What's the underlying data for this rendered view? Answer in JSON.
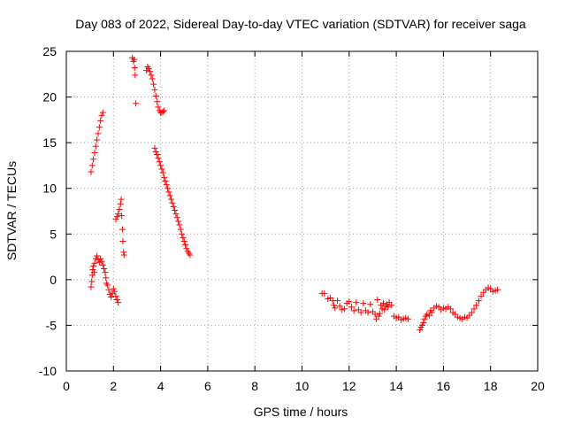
{
  "chart_data": {
    "type": "scatter",
    "title": "Day 083 of 2022, Sidereal Day-to-day VTEC variation (SDTVAR) for receiver saga",
    "xlabel": "GPS time / hours",
    "ylabel": "SDTVAR / TECUs",
    "xlim": [
      0,
      20
    ],
    "ylim": [
      -10,
      25
    ],
    "xticks": [
      0,
      2,
      4,
      6,
      8,
      10,
      12,
      14,
      16,
      18,
      20
    ],
    "yticks": [
      -10,
      -5,
      0,
      5,
      10,
      15,
      20,
      25
    ],
    "grid": true,
    "marker": "+",
    "series": [
      {
        "name": "SDTVAR",
        "color": "#ff0000",
        "segments": [
          [
            [
              1.05,
              11.8
            ],
            [
              1.1,
              12.5
            ],
            [
              1.15,
              13.2
            ],
            [
              1.2,
              13.9
            ],
            [
              1.25,
              14.6
            ],
            [
              1.3,
              15.3
            ],
            [
              1.35,
              16.0
            ],
            [
              1.4,
              16.7
            ],
            [
              1.45,
              17.4
            ],
            [
              1.5,
              18.0
            ],
            [
              1.55,
              18.3
            ]
          ],
          [
            [
              1.05,
              -0.8
            ],
            [
              1.08,
              -0.2
            ],
            [
              1.1,
              0.5
            ],
            [
              1.12,
              1.1
            ],
            [
              1.15,
              1.5
            ],
            [
              1.18,
              0.8
            ],
            [
              1.2,
              1.8
            ],
            [
              1.25,
              2.3
            ],
            [
              1.3,
              2.6
            ],
            [
              1.35,
              2.2
            ],
            [
              1.4,
              1.9
            ],
            [
              1.45,
              2.3
            ],
            [
              1.5,
              2.0
            ],
            [
              1.55,
              1.6
            ],
            [
              1.6,
              1.2
            ],
            [
              1.65,
              0.8
            ],
            [
              1.68,
              0.2
            ],
            [
              1.7,
              -0.4
            ],
            [
              1.75,
              -0.6
            ],
            [
              1.8,
              -1.1
            ],
            [
              1.85,
              -1.6
            ],
            [
              1.9,
              -1.9
            ],
            [
              1.95,
              -1.5
            ],
            [
              2.0,
              -1.0
            ],
            [
              2.05,
              -1.3
            ],
            [
              2.1,
              -1.8
            ],
            [
              2.15,
              -2.2
            ],
            [
              2.2,
              -2.5
            ]
          ],
          [
            [
              2.1,
              6.6
            ],
            [
              2.15,
              6.9
            ],
            [
              2.2,
              7.2
            ],
            [
              2.25,
              7.7
            ],
            [
              2.3,
              8.3
            ],
            [
              2.33,
              8.8
            ],
            [
              2.35,
              7.0
            ],
            [
              2.38,
              5.5
            ],
            [
              2.4,
              4.2
            ],
            [
              2.43,
              3.0
            ],
            [
              2.45,
              2.7
            ]
          ],
          [
            [
              2.8,
              24.3
            ],
            [
              2.85,
              23.9
            ],
            [
              2.88,
              24.1
            ],
            [
              2.9,
              23.2
            ],
            [
              2.92,
              22.4
            ],
            [
              2.95,
              19.3
            ]
          ],
          [
            [
              3.4,
              22.9
            ],
            [
              3.45,
              23.3
            ],
            [
              3.5,
              23.1
            ],
            [
              3.55,
              22.8
            ],
            [
              3.6,
              22.4
            ],
            [
              3.65,
              22.0
            ],
            [
              3.7,
              21.4
            ],
            [
              3.75,
              20.8
            ],
            [
              3.8,
              20.1
            ],
            [
              3.85,
              19.5
            ],
            [
              3.9,
              18.9
            ],
            [
              3.95,
              18.5
            ],
            [
              4.0,
              18.3
            ],
            [
              4.05,
              18.3
            ],
            [
              4.1,
              18.4
            ],
            [
              4.15,
              18.5
            ]
          ],
          [
            [
              3.75,
              14.4
            ],
            [
              3.8,
              14.0
            ],
            [
              3.85,
              13.7
            ],
            [
              3.9,
              13.3
            ],
            [
              3.95,
              12.9
            ],
            [
              4.0,
              12.5
            ],
            [
              4.05,
              12.1
            ],
            [
              4.1,
              11.7
            ],
            [
              4.15,
              11.2
            ],
            [
              4.2,
              10.8
            ],
            [
              4.25,
              10.4
            ],
            [
              4.3,
              10.0
            ],
            [
              4.35,
              9.6
            ],
            [
              4.4,
              9.2
            ],
            [
              4.45,
              8.8
            ],
            [
              4.5,
              8.4
            ],
            [
              4.55,
              8.0
            ],
            [
              4.6,
              7.6
            ],
            [
              4.65,
              7.2
            ],
            [
              4.7,
              6.8
            ],
            [
              4.75,
              6.4
            ],
            [
              4.8,
              6.0
            ],
            [
              4.85,
              5.5
            ],
            [
              4.9,
              5.0
            ],
            [
              4.95,
              4.6
            ],
            [
              5.0,
              4.2
            ],
            [
              5.05,
              3.8
            ],
            [
              5.1,
              3.4
            ],
            [
              5.15,
              3.1
            ],
            [
              5.2,
              2.9
            ],
            [
              5.25,
              2.7
            ]
          ],
          [
            [
              10.85,
              -1.5
            ],
            [
              10.95,
              -1.5
            ],
            [
              11.1,
              -2.1
            ],
            [
              11.2,
              -2.0
            ],
            [
              11.3,
              -2.3
            ],
            [
              11.35,
              -2.8
            ],
            [
              11.4,
              -3.1
            ],
            [
              11.5,
              -2.3
            ],
            [
              11.6,
              -2.9
            ],
            [
              11.7,
              -3.3
            ],
            [
              11.8,
              -3.2
            ],
            [
              11.9,
              -2.6
            ],
            [
              12.0,
              -2.4
            ],
            [
              12.1,
              -3.0
            ],
            [
              12.2,
              -3.4
            ],
            [
              12.3,
              -2.5
            ],
            [
              12.4,
              -3.3
            ],
            [
              12.5,
              -3.6
            ],
            [
              12.6,
              -2.6
            ],
            [
              12.7,
              -3.4
            ],
            [
              12.8,
              -3.6
            ],
            [
              12.9,
              -2.7
            ],
            [
              13.0,
              -3.5
            ],
            [
              13.1,
              -3.8
            ],
            [
              13.15,
              -4.3
            ],
            [
              13.2,
              -2.2
            ],
            [
              13.25,
              -4.0
            ],
            [
              13.3,
              -3.7
            ],
            [
              13.35,
              -2.8
            ],
            [
              13.4,
              -3.2
            ],
            [
              13.45,
              -2.6
            ],
            [
              13.5,
              -3.3
            ],
            [
              13.55,
              -2.9
            ],
            [
              13.6,
              -2.7
            ],
            [
              13.65,
              -3.0
            ],
            [
              13.7,
              -2.5
            ],
            [
              13.8,
              -2.8
            ],
            [
              13.9,
              -4.0
            ],
            [
              14.0,
              -4.2
            ],
            [
              14.1,
              -4.1
            ],
            [
              14.2,
              -4.4
            ],
            [
              14.3,
              -4.3
            ],
            [
              14.4,
              -4.2
            ],
            [
              14.5,
              -4.3
            ]
          ],
          [
            [
              15.0,
              -5.5
            ],
            [
              15.05,
              -5.2
            ],
            [
              15.1,
              -5.0
            ],
            [
              15.15,
              -4.7
            ],
            [
              15.2,
              -4.3
            ],
            [
              15.25,
              -4.0
            ],
            [
              15.3,
              -3.8
            ],
            [
              15.4,
              -3.9
            ],
            [
              15.45,
              -3.4
            ],
            [
              15.5,
              -3.6
            ],
            [
              15.6,
              -3.1
            ],
            [
              15.7,
              -2.9
            ],
            [
              15.8,
              -3.0
            ],
            [
              15.9,
              -3.3
            ],
            [
              16.0,
              -3.1
            ],
            [
              16.1,
              -3.2
            ],
            [
              16.2,
              -3.0
            ],
            [
              16.3,
              -3.2
            ],
            [
              16.4,
              -3.6
            ],
            [
              16.5,
              -3.8
            ],
            [
              16.6,
              -4.1
            ],
            [
              16.7,
              -4.2
            ],
            [
              16.8,
              -4.3
            ],
            [
              16.9,
              -4.1
            ],
            [
              17.0,
              -4.2
            ],
            [
              17.1,
              -3.9
            ],
            [
              17.2,
              -3.6
            ],
            [
              17.3,
              -3.2
            ],
            [
              17.4,
              -2.8
            ],
            [
              17.5,
              -2.3
            ],
            [
              17.6,
              -1.8
            ],
            [
              17.7,
              -1.4
            ],
            [
              17.8,
              -1.1
            ],
            [
              17.9,
              -0.9
            ],
            [
              18.0,
              -1.0
            ],
            [
              18.1,
              -1.3
            ],
            [
              18.2,
              -1.2
            ],
            [
              18.3,
              -1.1
            ]
          ]
        ]
      }
    ]
  }
}
